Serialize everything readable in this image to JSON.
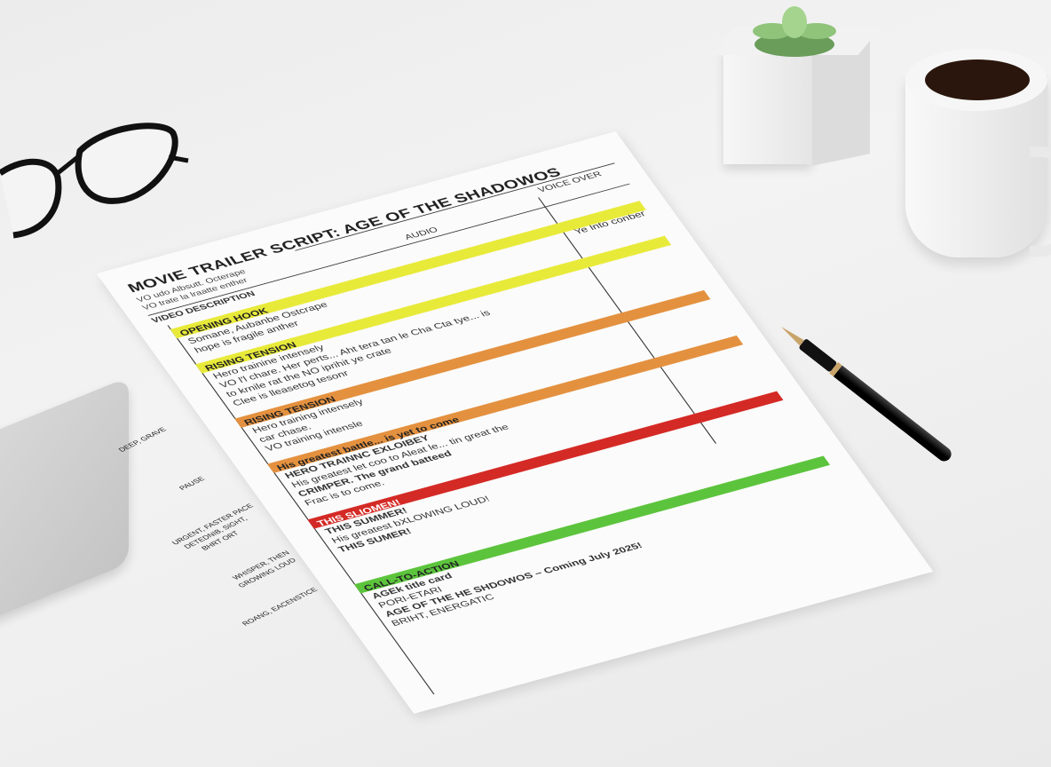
{
  "colors": {
    "yellow": "#e8ea3a",
    "orange": "#e4913f",
    "red": "#d42a25",
    "green": "#5cc43c",
    "paper": "#fbfbfb",
    "desk": "#eeeeee"
  },
  "script": {
    "title": "MOVIE TRAILER SCRIPT: AGE OF THE SHADOWOS",
    "subtitle_lines": [
      "VO udo Albsutt. Octerape",
      "VO trate la lraatte enther"
    ],
    "columns": {
      "video": "VIDEO DESCRIPTION",
      "audio": "AUDIO",
      "voice": "VOICE OVER"
    },
    "voice_note": "Ye lnto conber",
    "sections": [
      {
        "label": "OPENING HOOK",
        "color": "yellow",
        "lines": [
          "Somane, Aubanbe Ostcrape",
          "hope is fragile anther"
        ]
      },
      {
        "label": "RISING TENSION",
        "color": "yellow",
        "lines": [
          "Hero trainine intensely",
          "VO l'l chare. Her perts... Aht tera tan le Cha Cta tye... is",
          "to krnile rat the NO iprihit ye crate",
          "Clee is lleasetog tesonr"
        ]
      },
      {
        "label": "RISING TENSION",
        "color": "orange",
        "lines": [
          "Hero training intensely",
          "car chase.",
          "VO training intensle"
        ]
      },
      {
        "label": "His greatest battle... is yet to come",
        "color": "orange",
        "lines": [
          "HERO TRAINNC EXLOIBEY",
          "His greatest let coo to Aleat le... tin great the",
          "CRIMPER. The grand batteed",
          "Frac is to come."
        ]
      },
      {
        "label": "THIS SLIOMEN!",
        "color": "red",
        "lines": [
          "THIS SUMMER!",
          "His greatest bXLOWING LOUD!",
          "THIS SUMER!"
        ]
      },
      {
        "label": "CALL-TO-ACTION",
        "color": "green",
        "lines": [
          "AGEk title card",
          "PORI-ETARI",
          "AGE OF THE HE SHDOWOS – Coming July 2025!",
          "BRIHT, ENERGATIC"
        ]
      }
    ],
    "margin_notes": [
      "DEEP, GRAVE",
      "PAUSE",
      "URGENT, FASTER PACE",
      "DETEDNIB, SIGHT,",
      "BHRT ORT",
      "WHISPER, THEN",
      "GROWING LOUD",
      "ROANG, EACENSTICE"
    ]
  }
}
